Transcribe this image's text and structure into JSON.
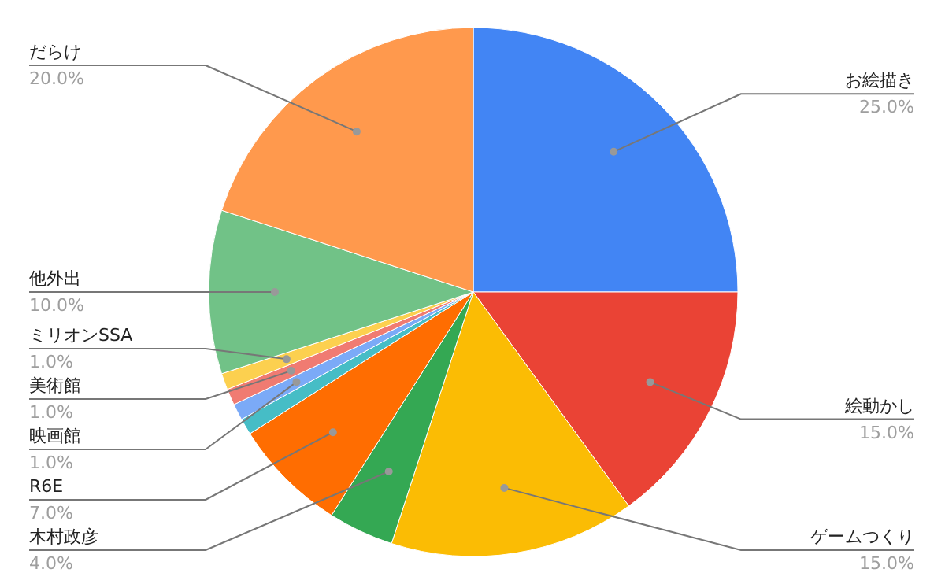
{
  "chart_data": {
    "type": "pie",
    "categories": [
      "お絵描き",
      "絵動かし",
      "ゲームつくり",
      "木村政彦",
      "R6E",
      null,
      "映画館",
      "美術館",
      "ミリオンSSA",
      "他外出",
      "だらけ"
    ],
    "values": [
      25,
      15,
      15,
      4,
      7,
      1,
      1,
      1,
      1,
      10,
      20
    ],
    "colors": [
      "#4285f4",
      "#ea4335",
      "#fbbc04",
      "#34a853",
      "#ff6d01",
      "#46bdc6",
      "#7baaf7",
      "#f07b72",
      "#fcd04f",
      "#71c287",
      "#ff994d"
    ],
    "value_labels": [
      "25.0%",
      "15.0%",
      "15.0%",
      "4.0%",
      "7.0%",
      null,
      "1.0%",
      "1.0%",
      "1.0%",
      "10.0%",
      "20.0%"
    ]
  }
}
